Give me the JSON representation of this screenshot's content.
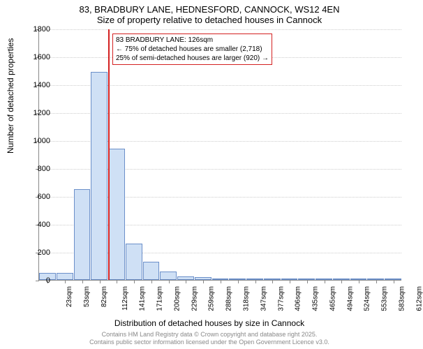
{
  "title": {
    "line1": "83, BRADBURY LANE, HEDNESFORD, CANNOCK, WS12 4EN",
    "line2": "Size of property relative to detached houses in Cannock"
  },
  "chart": {
    "type": "histogram",
    "ylabel": "Number of detached properties",
    "xlabel": "Distribution of detached houses by size in Cannock",
    "ylim": [
      0,
      1800
    ],
    "ytick_step": 200,
    "yticks": [
      0,
      200,
      400,
      600,
      800,
      1000,
      1200,
      1400,
      1600,
      1800
    ],
    "xtick_labels": [
      "23sqm",
      "53sqm",
      "82sqm",
      "112sqm",
      "141sqm",
      "171sqm",
      "200sqm",
      "229sqm",
      "259sqm",
      "288sqm",
      "318sqm",
      "347sqm",
      "377sqm",
      "406sqm",
      "435sqm",
      "465sqm",
      "494sqm",
      "524sqm",
      "553sqm",
      "583sqm",
      "612sqm"
    ],
    "bars": [
      {
        "x": 23,
        "v": 50
      },
      {
        "x": 53,
        "v": 50
      },
      {
        "x": 82,
        "v": 650
      },
      {
        "x": 112,
        "v": 1490
      },
      {
        "x": 141,
        "v": 940
      },
      {
        "x": 171,
        "v": 260
      },
      {
        "x": 200,
        "v": 130
      },
      {
        "x": 229,
        "v": 60
      },
      {
        "x": 259,
        "v": 25
      },
      {
        "x": 288,
        "v": 20
      },
      {
        "x": 318,
        "v": 10
      },
      {
        "x": 347,
        "v": 10
      },
      {
        "x": 377,
        "v": 10
      },
      {
        "x": 406,
        "v": 10
      },
      {
        "x": 435,
        "v": 2
      },
      {
        "x": 465,
        "v": 2
      },
      {
        "x": 494,
        "v": 2
      },
      {
        "x": 524,
        "v": 2
      },
      {
        "x": 553,
        "v": 2
      },
      {
        "x": 583,
        "v": 2
      },
      {
        "x": 612,
        "v": 2
      }
    ],
    "bar_fill": "#cfe0f5",
    "bar_border": "#6b8fc9",
    "background_color": "#ffffff",
    "grid_color": "#cccccc",
    "reference_line": {
      "value": 126,
      "color": "#d42020"
    },
    "annotation": {
      "line1": "83 BRADBURY LANE: 126sqm",
      "line2": "← 75% of detached houses are smaller (2,718)",
      "line3": "25% of semi-detached houses are larger (920) →",
      "border_color": "#d42020"
    }
  },
  "footer": {
    "line1": "Contains HM Land Registry data © Crown copyright and database right 2025.",
    "line2": "Contains public sector information licensed under the Open Government Licence v3.0."
  }
}
